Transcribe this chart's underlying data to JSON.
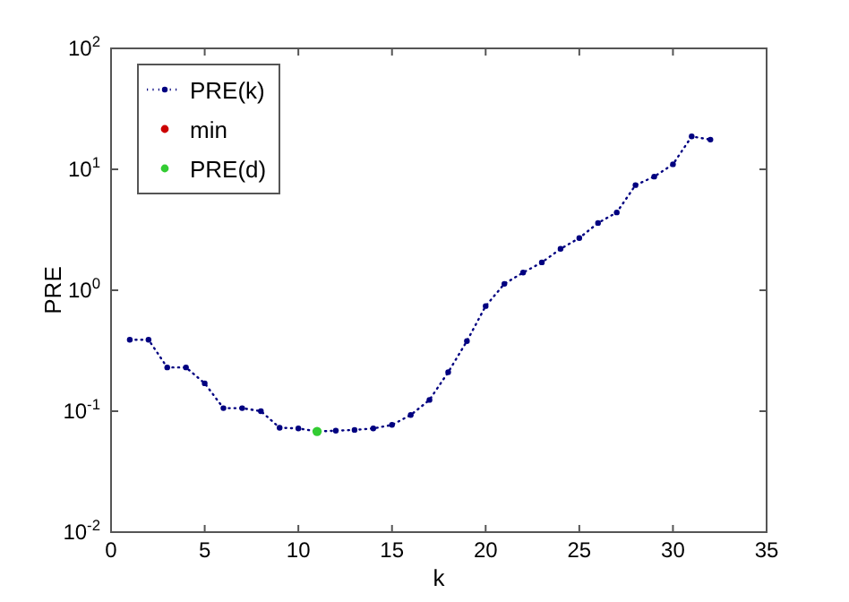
{
  "chart_data": {
    "type": "line",
    "xlabel": "k",
    "ylabel": "PRE",
    "log": "y",
    "xlim": [
      0,
      35
    ],
    "xticks": [
      0,
      5,
      10,
      15,
      20,
      25,
      30,
      35
    ],
    "ylim": [
      0.01,
      100
    ],
    "yticks": [
      {
        "value": 0.01,
        "label": "10$^{-2}$"
      },
      {
        "value": 0.1,
        "label": "10$^{-1}$"
      },
      {
        "value": 1,
        "label": "10$^{0}$"
      },
      {
        "value": 10,
        "label": "10$^{1}$"
      },
      {
        "value": 100,
        "label": "10$^{2}$"
      }
    ],
    "legend": "top left",
    "grid": false,
    "series": [
      {
        "name": "PRE(k)",
        "color": "#000080",
        "marker": "circle",
        "line_style": "dotted",
        "x": [
          1,
          2,
          3,
          4,
          5,
          6,
          7,
          8,
          9,
          10,
          11,
          12,
          13,
          14,
          15,
          16,
          17,
          18,
          19,
          20,
          21,
          22,
          23,
          24,
          25,
          26,
          27,
          28,
          29,
          30,
          31,
          32
        ],
        "values": [
          0.39,
          0.39,
          0.23,
          0.23,
          0.17,
          0.106,
          0.106,
          0.1,
          0.073,
          0.072,
          0.068,
          0.069,
          0.07,
          0.072,
          0.077,
          0.093,
          0.124,
          0.21,
          0.38,
          0.74,
          1.13,
          1.4,
          1.7,
          2.2,
          2.7,
          3.6,
          4.4,
          7.4,
          8.7,
          11,
          18.7,
          17.6
        ]
      },
      {
        "name": "min",
        "type": "scatter",
        "color": "#cc0000",
        "marker": "circle"
      },
      {
        "name": "PRE(d)",
        "type": "scatter",
        "color": "#33cc33",
        "marker": "circle",
        "x": [
          11
        ],
        "values": [
          0.068
        ]
      }
    ]
  }
}
